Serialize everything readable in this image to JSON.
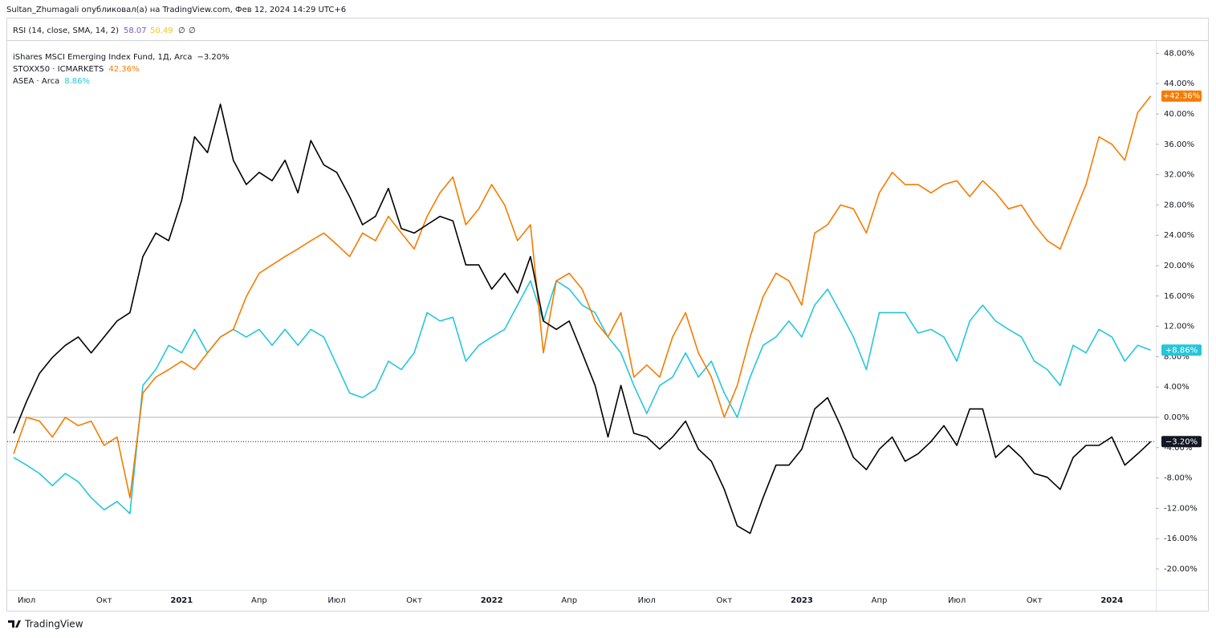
{
  "header": "Sultan_Zhumagali опубликовал(а) на TradingView.com, Фев 12, 2024 14:29 UTC+6",
  "indicator": {
    "name": "RSI (14, close, SMA, 14, 2)",
    "value": "58.07",
    "value_color": "#7e57c2",
    "sma": "50.49",
    "sma_color": "#f5c518",
    "extra": [
      "∅",
      "∅"
    ]
  },
  "footer": "TradingView",
  "chart_data": {
    "type": "line",
    "x": [
      -0.5,
      0,
      0.5,
      1,
      1.5,
      2,
      2.5,
      3,
      3.5,
      4,
      4.5,
      5,
      5.5,
      6,
      6.5,
      7,
      7.5,
      8,
      8.5,
      9,
      9.5,
      10,
      10.5,
      11,
      11.5,
      12,
      12.5,
      13,
      13.5,
      14,
      14.5,
      15,
      15.5,
      16,
      16.5,
      17,
      17.5,
      18,
      18.5,
      19,
      19.5,
      20,
      20.5,
      21,
      21.5,
      22,
      22.5,
      23,
      23.5,
      24,
      24.5,
      25,
      25.5,
      26,
      26.5,
      27,
      27.5,
      28,
      28.5,
      29,
      29.5,
      30,
      30.5,
      31,
      31.5,
      32,
      32.5,
      33,
      33.5,
      34,
      34.5,
      35,
      35.5,
      36,
      36.5,
      37,
      37.5,
      38,
      38.5,
      39,
      39.5,
      40,
      40.5,
      41,
      41.5,
      42,
      42.5,
      43,
      43.5
    ],
    "xlim": [
      -0.75,
      43.7
    ],
    "xticks": [
      {
        "value": 0,
        "label": "Июл"
      },
      {
        "value": 3,
        "label": "Окт"
      },
      {
        "value": 6,
        "label": "2021"
      },
      {
        "value": 9,
        "label": "Апр"
      },
      {
        "value": 12,
        "label": "Июл"
      },
      {
        "value": 15,
        "label": "Окт"
      },
      {
        "value": 18,
        "label": "2022"
      },
      {
        "value": 21,
        "label": "Апр"
      },
      {
        "value": 24,
        "label": "Июл"
      },
      {
        "value": 27,
        "label": "Окт"
      },
      {
        "value": 30,
        "label": "2023"
      },
      {
        "value": 33,
        "label": "Апр"
      },
      {
        "value": 36,
        "label": "Июл"
      },
      {
        "value": 39,
        "label": "Окт"
      },
      {
        "value": 42,
        "label": "2024"
      }
    ],
    "ylim": [
      -22.75,
      49
    ],
    "yticks": [
      {
        "value": 48,
        "label": "48.00%"
      },
      {
        "value": 44,
        "label": "44.00%"
      },
      {
        "value": 40,
        "label": "40.00%"
      },
      {
        "value": 36,
        "label": "36.00%"
      },
      {
        "value": 32,
        "label": "32.00%"
      },
      {
        "value": 28,
        "label": "28.00%"
      },
      {
        "value": 24,
        "label": "24.00%"
      },
      {
        "value": 20,
        "label": "20.00%"
      },
      {
        "value": 16,
        "label": "16.00%"
      },
      {
        "value": 12,
        "label": "12.00%"
      },
      {
        "value": 8,
        "label": "8.00%"
      },
      {
        "value": 4,
        "label": "4.00%"
      },
      {
        "value": 0,
        "label": "0.00%"
      },
      {
        "value": -4,
        "label": "-4.00%"
      },
      {
        "value": -8,
        "label": "-8.00%"
      },
      {
        "value": -12,
        "label": "-12.00%"
      },
      {
        "value": -16,
        "label": "-16.00%"
      },
      {
        "value": -20,
        "label": "-20.00%"
      }
    ],
    "series": [
      {
        "name": "iShares MSCI Emerging Index Fund, 1Д, Arca",
        "legend_value": "−3.20%",
        "badge": "−3.20%",
        "color": "#000000",
        "values": [
          -2.1,
          2.1,
          5.8,
          7.9,
          9.5,
          10.6,
          8.5,
          10.6,
          12.7,
          13.8,
          21.2,
          24.3,
          23.3,
          28.6,
          37.0,
          34.9,
          41.3,
          33.9,
          30.7,
          32.3,
          31.2,
          33.9,
          29.6,
          36.5,
          33.3,
          32.3,
          29.1,
          25.4,
          26.5,
          30.2,
          24.9,
          24.3,
          25.4,
          26.5,
          25.9,
          20.1,
          20.1,
          16.9,
          19.0,
          16.4,
          21.2,
          12.7,
          11.6,
          12.7,
          8.5,
          4.2,
          -2.6,
          4.2,
          -2.1,
          -2.6,
          -4.2,
          -2.6,
          -0.5,
          -4.2,
          -5.8,
          -9.5,
          -14.3,
          -15.3,
          -10.6,
          -6.3,
          -6.3,
          -4.2,
          1.1,
          2.6,
          -1.1,
          -5.3,
          -6.9,
          -4.2,
          -2.6,
          -5.8,
          -4.8,
          -3.2,
          -1.1,
          -3.7,
          1.1,
          1.1,
          -5.3,
          -3.7,
          -5.3,
          -7.4,
          -7.9,
          -9.5,
          -5.3,
          -3.7,
          -3.7,
          -2.6,
          -6.3,
          -4.8,
          -3.2
        ]
      },
      {
        "name": "STOXX50 · ICMARKETS",
        "legend_value": "42.36%",
        "badge": "+42.36%",
        "color": "#f57c00",
        "values": [
          -4.8,
          0,
          -0.5,
          -2.6,
          0,
          -1.1,
          -0.5,
          -3.7,
          -2.6,
          -10.6,
          3.2,
          5.3,
          6.3,
          7.4,
          6.3,
          8.5,
          10.6,
          11.6,
          15.9,
          19.0,
          20.1,
          21.2,
          22.2,
          23.3,
          24.3,
          22.8,
          21.2,
          24.3,
          23.3,
          26.5,
          24.3,
          22.2,
          26.5,
          29.6,
          31.7,
          25.4,
          27.5,
          30.7,
          28.0,
          23.3,
          25.4,
          8.5,
          18.0,
          19.0,
          16.9,
          12.7,
          10.6,
          13.8,
          5.3,
          6.9,
          5.3,
          10.6,
          13.8,
          8.5,
          5.3,
          0,
          4.2,
          10.6,
          15.9,
          19.0,
          18.0,
          14.8,
          24.3,
          25.4,
          28.0,
          27.5,
          24.3,
          29.6,
          32.3,
          30.7,
          30.7,
          29.6,
          30.7,
          31.2,
          29.1,
          31.2,
          29.6,
          27.5,
          28.0,
          25.4,
          23.3,
          22.2,
          26.5,
          30.7,
          37.0,
          36.0,
          33.9,
          40.2,
          42.36
        ]
      },
      {
        "name": "ASEA · Arca",
        "legend_value": "8.86%",
        "badge": "+8.86%",
        "color": "#26c6da",
        "values": [
          -5.3,
          -6.3,
          -7.4,
          -9.0,
          -7.4,
          -8.5,
          -10.6,
          -12.2,
          -11.1,
          -12.7,
          4.2,
          6.3,
          9.5,
          8.5,
          11.6,
          8.5,
          10.6,
          11.6,
          10.6,
          11.6,
          9.5,
          11.6,
          9.5,
          11.6,
          10.6,
          6.9,
          3.2,
          2.6,
          3.7,
          7.4,
          6.3,
          8.5,
          13.8,
          12.7,
          13.2,
          7.4,
          9.5,
          10.6,
          11.6,
          14.8,
          18.0,
          12.7,
          18.0,
          16.9,
          14.8,
          13.8,
          10.6,
          8.5,
          4.2,
          0.5,
          4.2,
          5.3,
          8.5,
          5.3,
          7.4,
          3.2,
          0,
          5.3,
          9.5,
          10.6,
          12.7,
          10.6,
          14.8,
          16.9,
          13.8,
          10.6,
          6.3,
          13.8,
          13.8,
          13.8,
          11.1,
          11.6,
          10.6,
          7.4,
          12.7,
          14.8,
          12.7,
          11.6,
          10.6,
          7.4,
          6.3,
          4.2,
          9.5,
          8.5,
          11.6,
          10.6,
          7.4,
          9.5,
          8.86
        ]
      }
    ]
  }
}
